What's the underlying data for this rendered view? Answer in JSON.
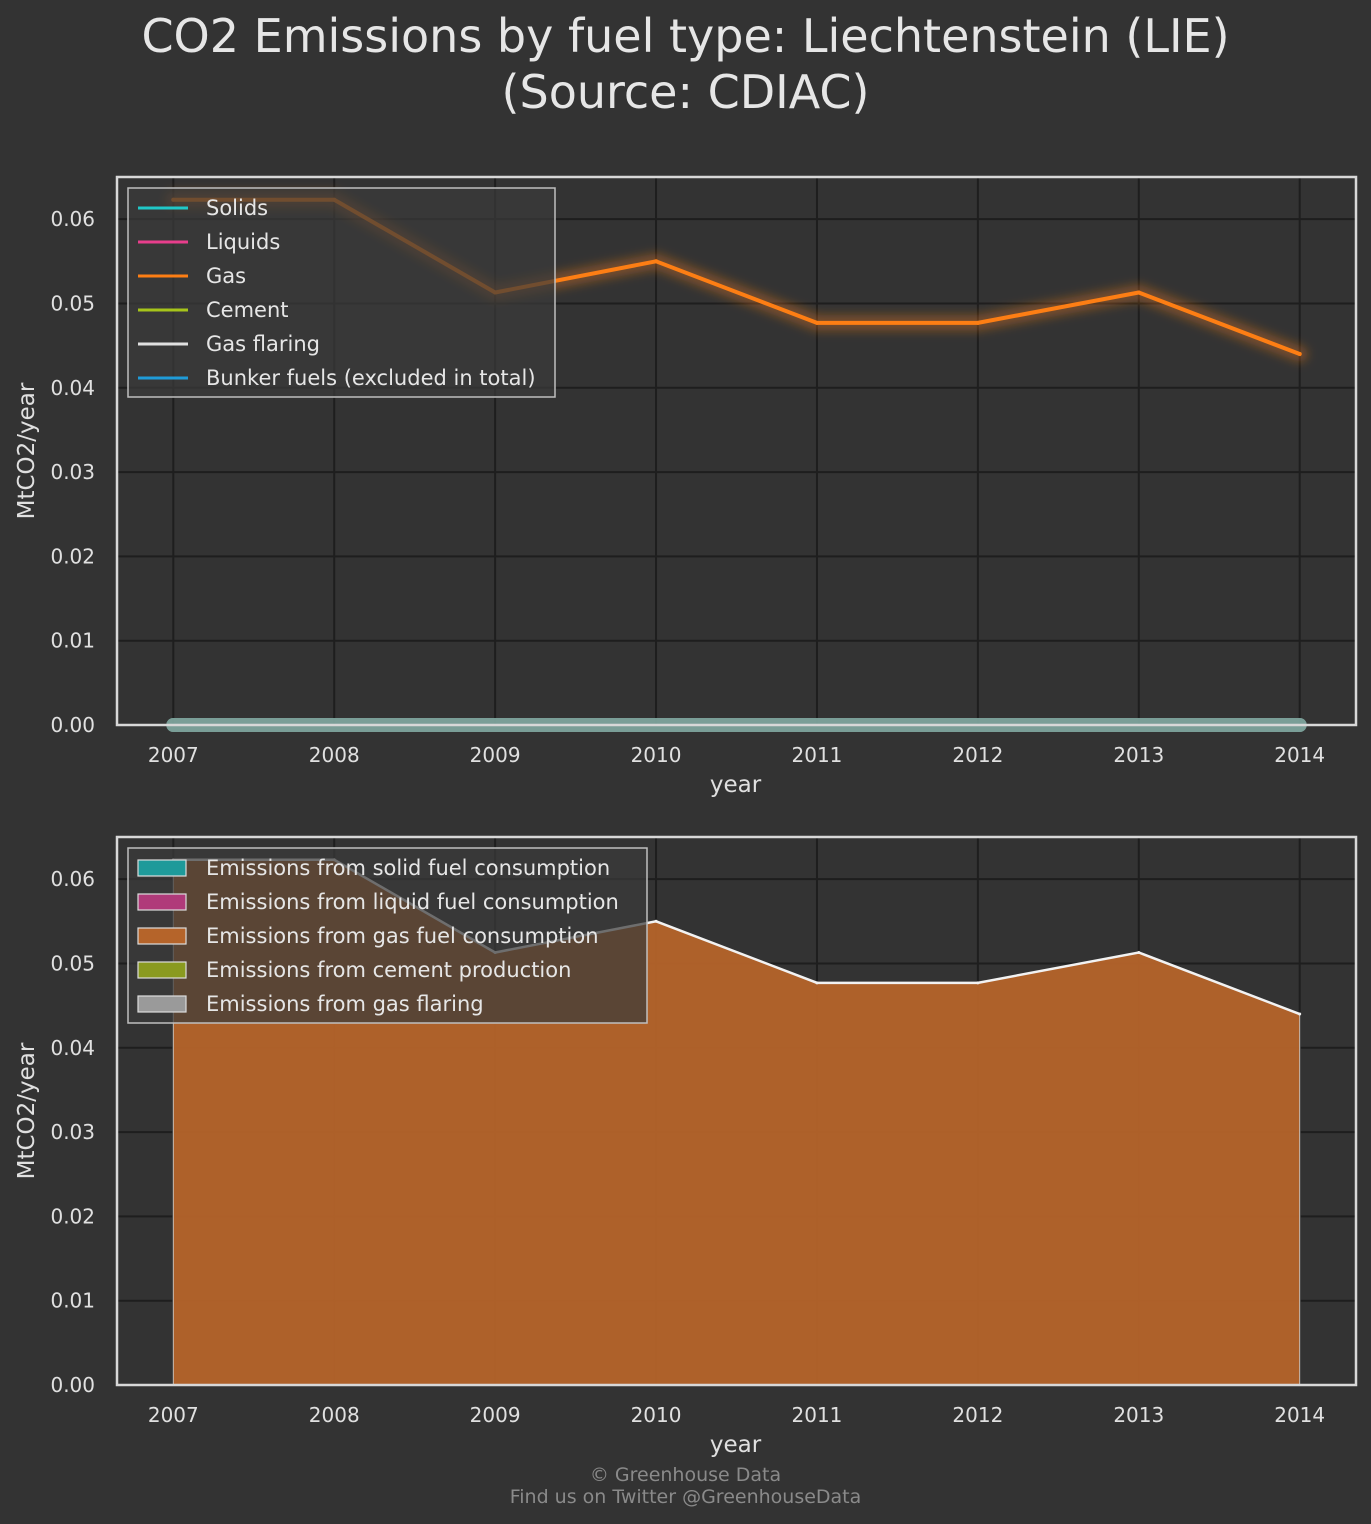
{
  "title": {
    "line1": "CO2 Emissions by fuel type: Liechtenstein (LIE)",
    "line2": "(Source: CDIAC)"
  },
  "footer": {
    "line1": "© Greenhouse Data",
    "line2": "Find us on Twitter @GreenhouseData"
  },
  "colors": {
    "background": "#333333",
    "solids": "#20c8c8",
    "liquids": "#e83e8c",
    "gas": "#fd7e14",
    "cement": "#a6c41a",
    "gas_flaring": "#e0e0e0",
    "bunker": "#1f9bd8",
    "area_solid": "#1e9a9a",
    "area_liquid": "#b03a7a",
    "area_gas": "#b5642a",
    "area_cement": "#8a9a20",
    "area_flaring": "#9a9a9a"
  },
  "chart_data": [
    {
      "type": "line",
      "x": [
        2007,
        2008,
        2009,
        2010,
        2011,
        2012,
        2013,
        2014
      ],
      "series": [
        {
          "name": "Solids",
          "values": [
            0,
            0,
            0,
            0,
            0,
            0,
            0,
            0
          ]
        },
        {
          "name": "Liquids",
          "values": [
            0,
            0,
            0,
            0,
            0,
            0,
            0,
            0
          ]
        },
        {
          "name": "Gas",
          "values": [
            0.0623,
            0.0623,
            0.0513,
            0.055,
            0.0477,
            0.0477,
            0.0513,
            0.044
          ]
        },
        {
          "name": "Cement",
          "values": [
            0,
            0,
            0,
            0,
            0,
            0,
            0,
            0
          ]
        },
        {
          "name": "Gas flaring",
          "values": [
            0,
            0,
            0,
            0,
            0,
            0,
            0,
            0
          ]
        },
        {
          "name": "Bunker fuels (excluded in total)",
          "values": [
            0,
            0,
            0,
            0,
            0,
            0,
            0,
            0
          ]
        }
      ],
      "xlabel": "year",
      "ylabel": "MtCO2/year",
      "ylim": [
        0,
        0.065
      ],
      "xlim": [
        2006.65,
        2014.35
      ],
      "yticks": [
        "0.00",
        "0.01",
        "0.02",
        "0.03",
        "0.04",
        "0.05",
        "0.06"
      ],
      "xticks": [
        "2007",
        "2008",
        "2009",
        "2010",
        "2011",
        "2012",
        "2013",
        "2014"
      ],
      "grid": true,
      "legend": "top-left"
    },
    {
      "type": "area",
      "x": [
        2007,
        2008,
        2009,
        2010,
        2011,
        2012,
        2013,
        2014
      ],
      "series": [
        {
          "name": "Emissions from solid fuel consumption",
          "values": [
            0,
            0,
            0,
            0,
            0,
            0,
            0,
            0
          ]
        },
        {
          "name": "Emissions from liquid fuel consumption",
          "values": [
            0,
            0,
            0,
            0,
            0,
            0,
            0,
            0
          ]
        },
        {
          "name": "Emissions from gas fuel consumption",
          "values": [
            0.0623,
            0.0623,
            0.0513,
            0.055,
            0.0477,
            0.0477,
            0.0513,
            0.044
          ]
        },
        {
          "name": "Emissions from cement production",
          "values": [
            0,
            0,
            0,
            0,
            0,
            0,
            0,
            0
          ]
        },
        {
          "name": "Emissions from gas flaring",
          "values": [
            0,
            0,
            0,
            0,
            0,
            0,
            0,
            0
          ]
        }
      ],
      "stacked": true,
      "xlabel": "year",
      "ylabel": "MtCO2/year",
      "ylim": [
        0,
        0.065
      ],
      "xlim": [
        2006.65,
        2014.35
      ],
      "yticks": [
        "0.00",
        "0.01",
        "0.02",
        "0.03",
        "0.04",
        "0.05",
        "0.06"
      ],
      "xticks": [
        "2007",
        "2008",
        "2009",
        "2010",
        "2011",
        "2012",
        "2013",
        "2014"
      ],
      "grid": true,
      "legend": "top-left"
    }
  ]
}
